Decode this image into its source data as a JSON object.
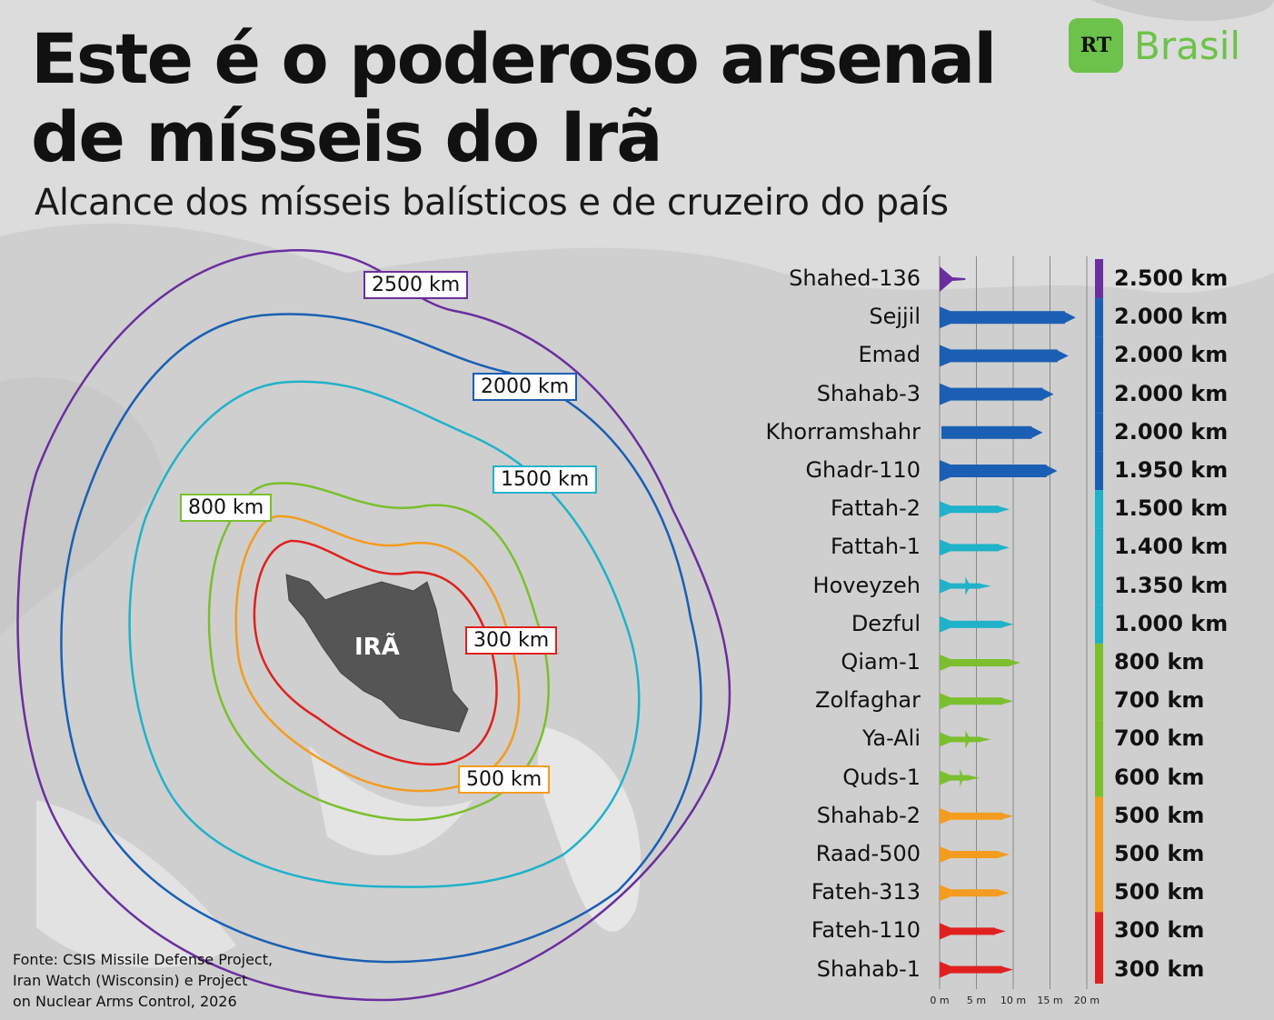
{
  "header": {
    "title_line1": "Este é o poderoso arsenal",
    "title_line2": "de mísseis do Irã",
    "subtitle": "Alcance dos mísseis balísticos e de cruzeiro do país"
  },
  "logo": {
    "mark": "RT",
    "text": "Brasil",
    "color": "#6cc24a"
  },
  "map": {
    "country_label": "IRÃ",
    "rings": [
      {
        "label": "2500 km",
        "color": "#6a2f9e"
      },
      {
        "label": "2000 km",
        "color": "#1a5fb4"
      },
      {
        "label": "1500 km",
        "color": "#1fb2c9"
      },
      {
        "label": "800 km",
        "color": "#7bbf2e"
      },
      {
        "label": "500 km",
        "color": "#f39c1f"
      },
      {
        "label": "300 km",
        "color": "#e02020"
      }
    ]
  },
  "source": {
    "line1": "Fonte: CSIS Missile Defense Project,",
    "line2": "Iran Watch (Wisconsin) e Project",
    "line3": "on Nuclear Arms Control, 2026"
  },
  "chart_data": {
    "type": "bar",
    "xlabel": "",
    "x_ticks": [
      "0 m",
      "5 m",
      "10 m",
      "15 m",
      "20 m"
    ],
    "xlim": [
      0,
      20
    ],
    "grid": true,
    "categories": [
      "Shahed-136",
      "Sejjil",
      "Emad",
      "Shahab-3",
      "Khorramshahr",
      "Ghadr-110",
      "Fattah-2",
      "Fattah-1",
      "Hoveyzeh",
      "Dezful",
      "Qiam-1",
      "Zolfaghar",
      "Ya-Ali",
      "Quds-1",
      "Shahab-2",
      "Raad-500",
      "Fateh-313",
      "Fateh-110",
      "Shahab-1"
    ],
    "length_m": [
      3.5,
      18.5,
      17.5,
      15.5,
      14,
      16,
      9.5,
      9.5,
      7,
      10,
      11,
      10,
      7,
      5.5,
      10,
      9.5,
      9.5,
      9,
      10
    ],
    "ranges": [
      "2.500 km",
      "2.000 km",
      "2.000 km",
      "2.000 km",
      "2.000 km",
      "1.950 km",
      "1.500 km",
      "1.400 km",
      "1.350 km",
      "1.000 km",
      "800 km",
      "700 km",
      "700 km",
      "600 km",
      "500 km",
      "500 km",
      "500 km",
      "300 km",
      "300 km"
    ],
    "colors": [
      "#6a2f9e",
      "#1a5fb4",
      "#1a5fb4",
      "#1a5fb4",
      "#1a5fb4",
      "#1a5fb4",
      "#1fb2c9",
      "#1fb2c9",
      "#1fb2c9",
      "#1fb2c9",
      "#7bbf2e",
      "#7bbf2e",
      "#7bbf2e",
      "#7bbf2e",
      "#f39c1f",
      "#f39c1f",
      "#f39c1f",
      "#e02020",
      "#e02020"
    ],
    "kinds": [
      "drone",
      "missile",
      "missile",
      "missile",
      "plain",
      "missile",
      "missile",
      "missile",
      "cruise",
      "missile",
      "missile",
      "missile",
      "cruise",
      "cruise",
      "missile",
      "missile",
      "missile",
      "missile",
      "missile"
    ]
  }
}
